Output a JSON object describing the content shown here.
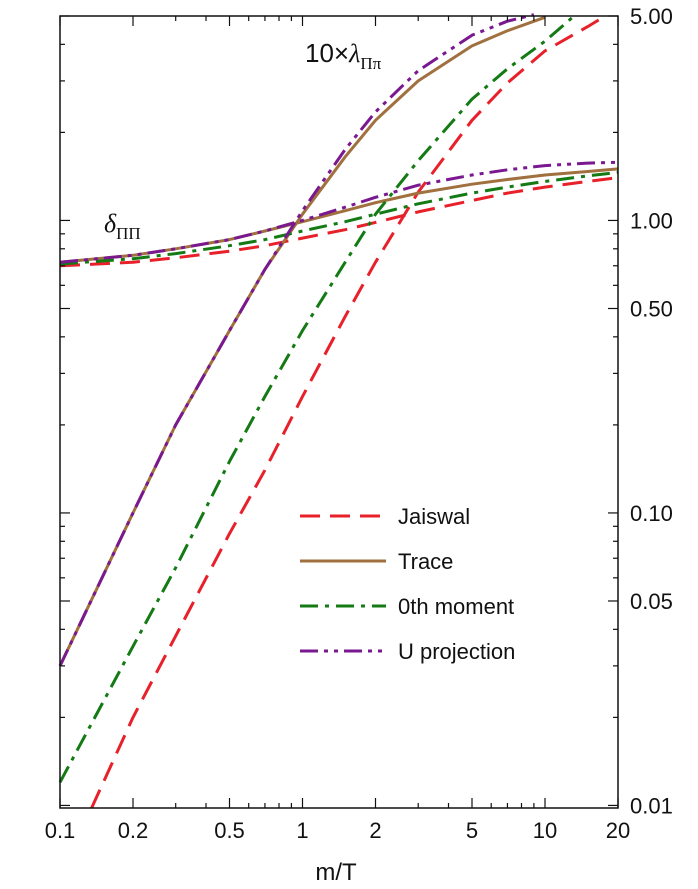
{
  "chart_data": {
    "type": "line",
    "xlabel": "m/T",
    "ylabel": "",
    "x_scale": "log",
    "y_scale": "log",
    "xlim": [
      0.1,
      20
    ],
    "ylim": [
      0.0098,
      5.0
    ],
    "x_ticks": [
      {
        "value": 0.1,
        "label": "0.1"
      },
      {
        "value": 0.2,
        "label": "0.2"
      },
      {
        "value": 0.5,
        "label": "0.5"
      },
      {
        "value": 1,
        "label": "1"
      },
      {
        "value": 2,
        "label": "2"
      },
      {
        "value": 5,
        "label": "5"
      },
      {
        "value": 10,
        "label": "10"
      },
      {
        "value": 20,
        "label": "20"
      }
    ],
    "y_ticks": [
      {
        "value": 0.01,
        "label": "0.01"
      },
      {
        "value": 0.05,
        "label": "0.05"
      },
      {
        "value": 0.1,
        "label": "0.10"
      },
      {
        "value": 0.5,
        "label": "0.50"
      },
      {
        "value": 1,
        "label": "1.00"
      },
      {
        "value": 5,
        "label": "5.00"
      }
    ],
    "grid": false,
    "y_axis_side": "right",
    "legend_position": "bottom-right",
    "annotations": [
      {
        "id": "lambda",
        "prefix": "10×",
        "symbol": "λ",
        "subscript": "Ππ"
      },
      {
        "id": "delta",
        "prefix": "",
        "symbol": "δ",
        "subscript": "ΠΠ"
      }
    ],
    "series": [
      {
        "name": "Jaiswal",
        "color": "#e8202a",
        "dash": "20,10",
        "curves": {
          "lambda": {
            "x": [
              0.135,
              0.2,
              0.3,
              0.5,
              0.7,
              1.0,
              1.5,
              2.0,
              3.0,
              5.0,
              7.0,
              10.0,
              15.0,
              17.0
            ],
            "y": [
              0.0098,
              0.02,
              0.038,
              0.085,
              0.14,
              0.25,
              0.47,
              0.72,
              1.25,
              2.2,
              2.95,
              3.8,
              4.6,
              4.9
            ]
          },
          "delta": {
            "x": [
              0.1,
              0.2,
              0.3,
              0.5,
              0.7,
              1.0,
              1.5,
              2.0,
              3.0,
              5.0,
              7.0,
              10.0,
              15.0,
              20.0
            ],
            "y": [
              0.7,
              0.72,
              0.745,
              0.785,
              0.82,
              0.87,
              0.93,
              0.985,
              1.07,
              1.17,
              1.24,
              1.3,
              1.36,
              1.4
            ]
          }
        }
      },
      {
        "name": "Trace",
        "color": "#a0703f",
        "dash": "",
        "curves": {
          "lambda": {
            "x": [
              0.1,
              0.2,
              0.3,
              0.5,
              0.7,
              1.0,
              1.5,
              2.0,
              3.0,
              5.0,
              7.0,
              10.0
            ],
            "y": [
              0.03,
              0.1,
              0.2,
              0.42,
              0.68,
              1.05,
              1.65,
              2.2,
              3.0,
              3.95,
              4.45,
              4.95
            ]
          },
          "delta": {
            "x": [
              0.1,
              0.2,
              0.3,
              0.5,
              0.7,
              1.0,
              1.5,
              2.0,
              3.0,
              5.0,
              7.0,
              10.0,
              15.0,
              20.0
            ],
            "y": [
              0.72,
              0.76,
              0.8,
              0.86,
              0.92,
              0.99,
              1.08,
              1.15,
              1.24,
              1.33,
              1.38,
              1.43,
              1.47,
              1.5
            ]
          }
        }
      },
      {
        "name": "0th moment",
        "color": "#137a14",
        "dash": "18,7,4,7",
        "curves": {
          "lambda": {
            "x": [
              0.1,
              0.2,
              0.3,
              0.5,
              0.7,
              1.0,
              1.5,
              2.0,
              3.0,
              5.0,
              7.0,
              10.0,
              13.0
            ],
            "y": [
              0.012,
              0.035,
              0.065,
              0.15,
              0.25,
              0.42,
              0.72,
              1.05,
              1.6,
              2.6,
              3.3,
              4.1,
              4.95
            ]
          },
          "delta": {
            "x": [
              0.1,
              0.2,
              0.3,
              0.5,
              0.7,
              1.0,
              1.5,
              2.0,
              3.0,
              5.0,
              7.0,
              10.0,
              15.0,
              20.0
            ],
            "y": [
              0.71,
              0.74,
              0.77,
              0.82,
              0.86,
              0.92,
              0.99,
              1.05,
              1.14,
              1.24,
              1.3,
              1.36,
              1.42,
              1.46
            ]
          }
        }
      },
      {
        "name": "U projection",
        "color": "#7a1890",
        "dash": "18,6,4,6,4,6",
        "curves": {
          "lambda": {
            "x": [
              0.1,
              0.2,
              0.3,
              0.5,
              0.7,
              1.0,
              1.5,
              2.0,
              3.0,
              5.0,
              7.0,
              9.0
            ],
            "y": [
              0.03,
              0.1,
              0.2,
              0.42,
              0.68,
              1.08,
              1.75,
              2.35,
              3.25,
              4.3,
              4.8,
              5.05
            ]
          },
          "delta": {
            "x": [
              0.1,
              0.2,
              0.3,
              0.5,
              0.7,
              1.0,
              1.5,
              2.0,
              3.0,
              5.0,
              7.0,
              10.0,
              15.0,
              20.0
            ],
            "y": [
              0.72,
              0.76,
              0.8,
              0.86,
              0.92,
              1.0,
              1.11,
              1.2,
              1.32,
              1.43,
              1.49,
              1.54,
              1.57,
              1.58
            ]
          }
        }
      }
    ]
  }
}
